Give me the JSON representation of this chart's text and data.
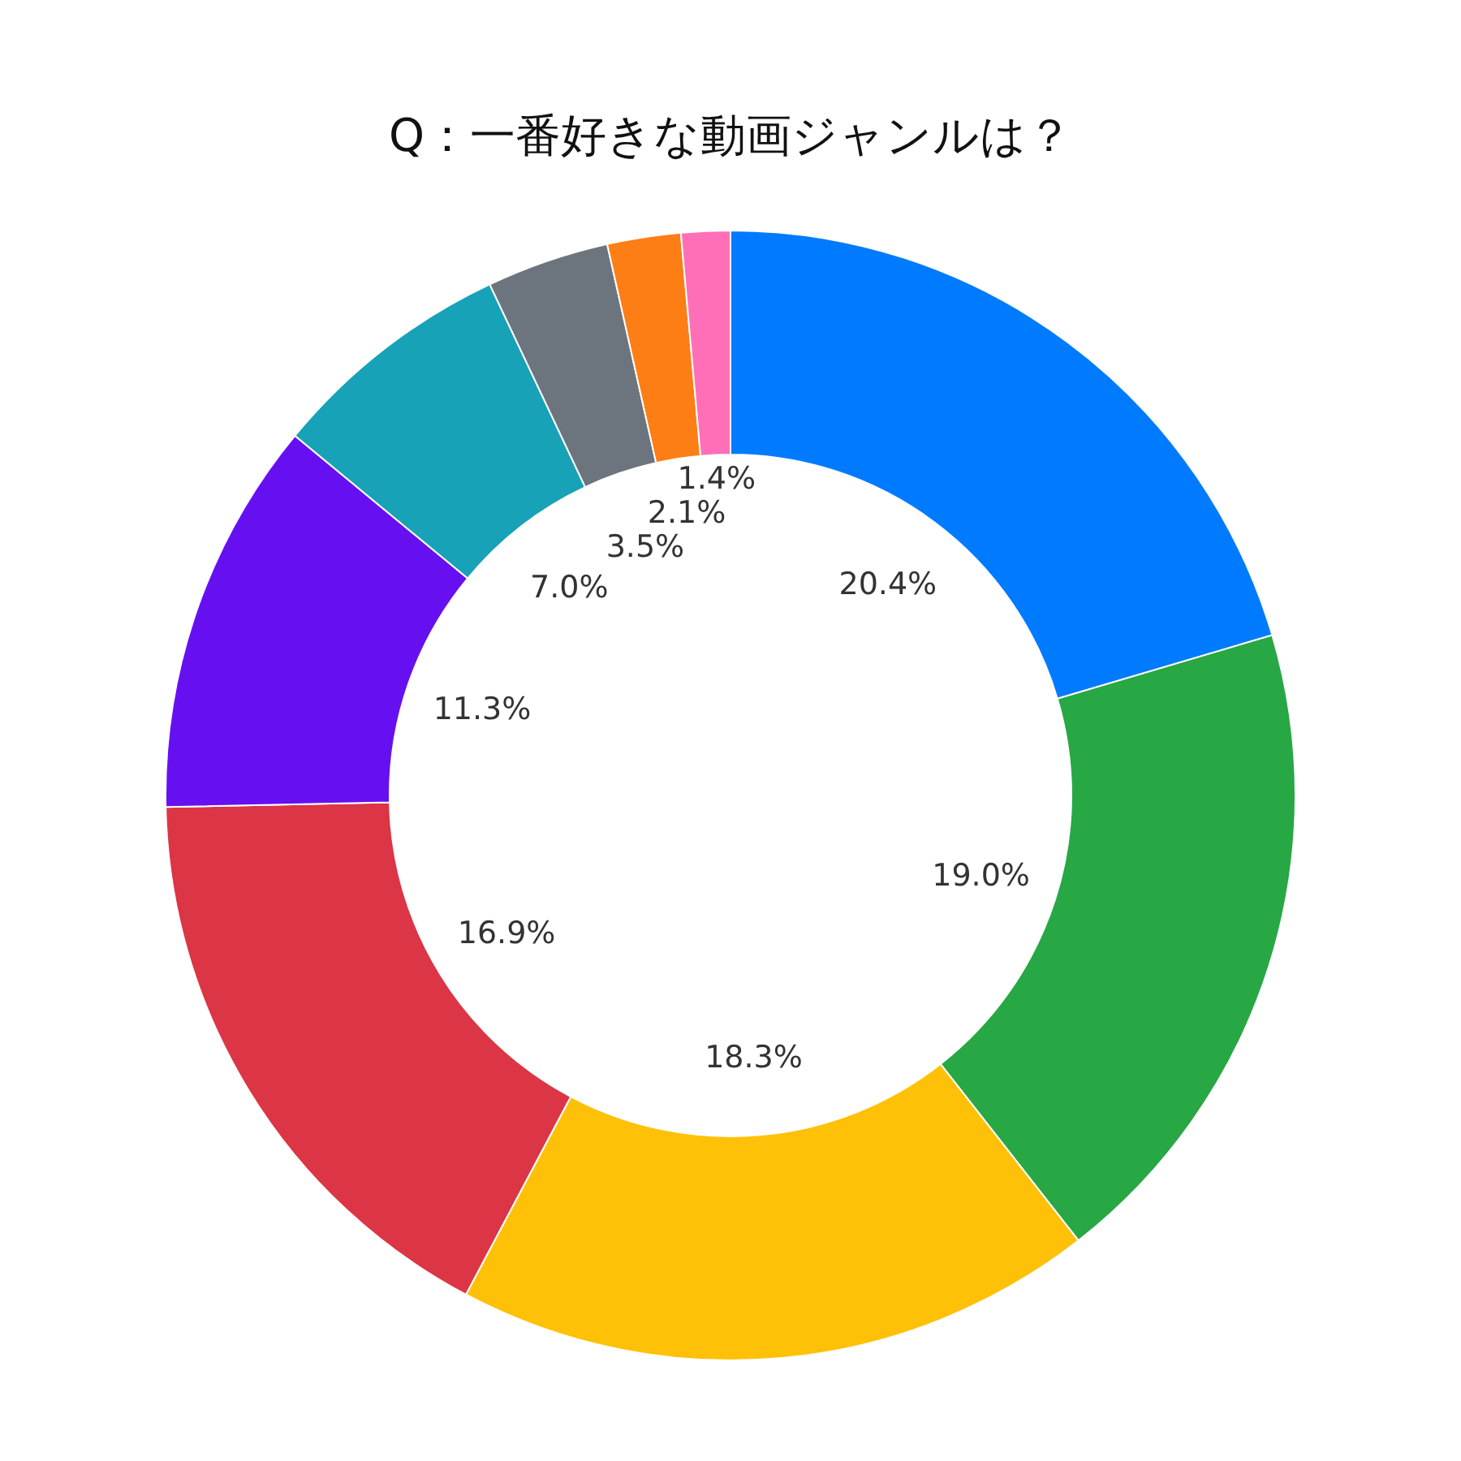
{
  "chart_data": {
    "type": "donut",
    "title": "Q：一番好きな動画ジャンルは？",
    "categories": [
      null,
      null,
      null,
      null,
      null,
      null,
      null,
      null,
      null
    ],
    "values": [
      20.4,
      19.0,
      18.3,
      16.9,
      11.3,
      7.0,
      3.5,
      2.1,
      1.4
    ],
    "colors": [
      "#007bff",
      "#28a745",
      "#ffc107",
      "#dc3545",
      "#6610f2",
      "#17a2b8",
      "#6c757d",
      "#fd7e14",
      "#ff6fb8"
    ],
    "value_labels": [
      "20.4%",
      "19.0%",
      "18.3%",
      "16.9%",
      "11.3%",
      "7.0%",
      "3.5%",
      "2.1%",
      "1.4%"
    ]
  }
}
